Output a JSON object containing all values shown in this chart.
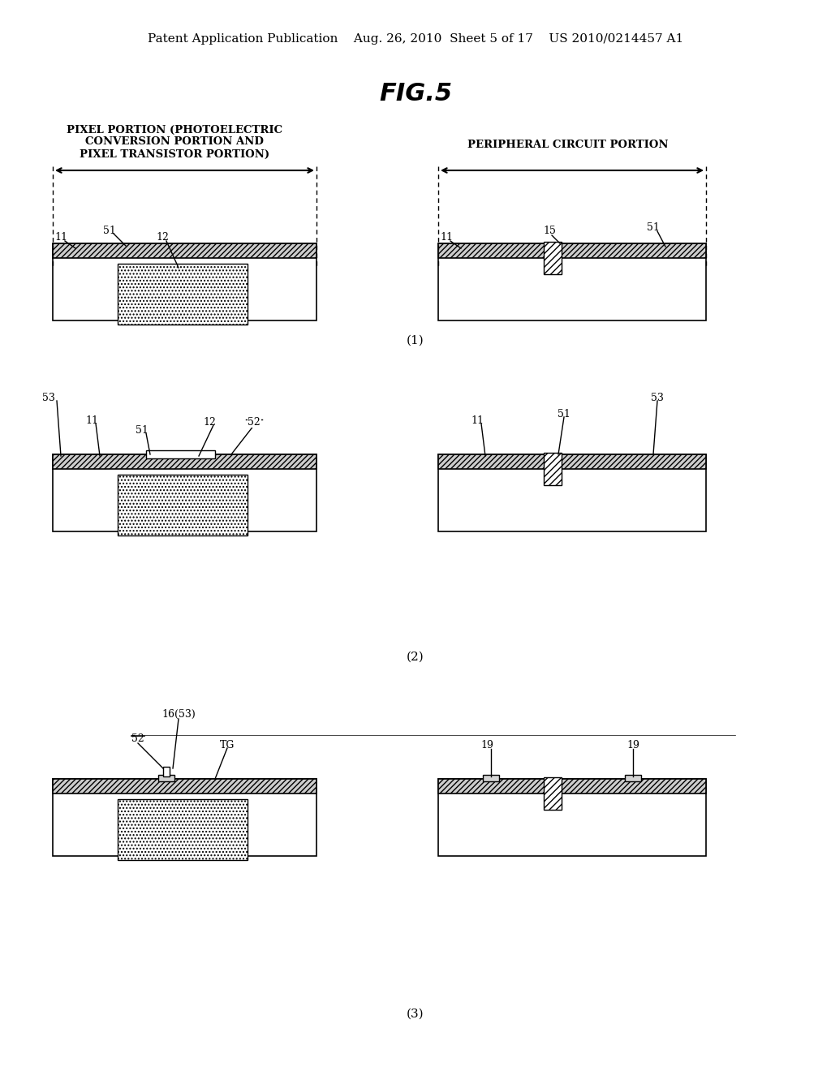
{
  "bg_color": "#ffffff",
  "header_line1": "Patent Application Publication",
  "header_line2": "Aug. 26, 2010  Sheet 5 of 17",
  "header_line3": "US 2010/0214457 A1",
  "title": "FIG.5",
  "label_pixel": "PIXEL PORTION (PHOTOELECTRIC\nCONVERSION PORTION AND\nPIXEL TRANSISTOR PORTION)",
  "label_peripheral": "PERIPHERAL CIRCUIT PORTION",
  "step_labels": [
    "(1)",
    "(2)",
    "(3)"
  ]
}
